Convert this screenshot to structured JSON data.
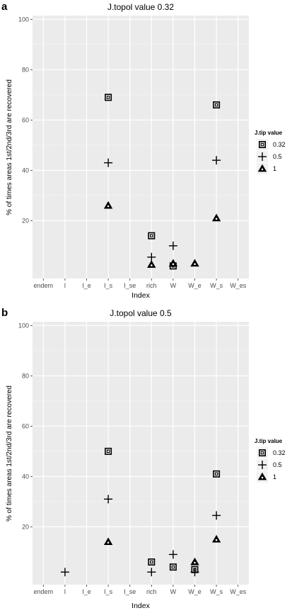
{
  "chart_data": [
    {
      "panel_label": "a",
      "type": "scatter",
      "title": "J.topol value  0.32",
      "xlabel": "Index",
      "ylabel": "% of times areas 1st/2nd/3rd are recovered",
      "categories": [
        "endem",
        "I",
        "I_e",
        "I_s",
        "I_se",
        "rich",
        "W",
        "W_e",
        "W_s",
        "W_es"
      ],
      "ylim": [
        0,
        100
      ],
      "yticks": [
        "20",
        "40",
        "60",
        "80",
        "100"
      ],
      "legend_title": "J.tip value",
      "legend_position": "right",
      "grid": true,
      "series": [
        {
          "name": "0.32",
          "shape": "square",
          "points": [
            {
              "x": "I_s",
              "y": 69
            },
            {
              "x": "rich",
              "y": 14
            },
            {
              "x": "W",
              "y": 2
            },
            {
              "x": "W_s",
              "y": 66
            }
          ]
        },
        {
          "name": "0.5",
          "shape": "plus",
          "points": [
            {
              "x": "I_s",
              "y": 43
            },
            {
              "x": "rich",
              "y": 5.5
            },
            {
              "x": "W",
              "y": 10
            },
            {
              "x": "W_s",
              "y": 44
            }
          ]
        },
        {
          "name": "1",
          "shape": "triangle",
          "points": [
            {
              "x": "I_s",
              "y": 26
            },
            {
              "x": "rich",
              "y": 2.5
            },
            {
              "x": "W",
              "y": 3
            },
            {
              "x": "W_e",
              "y": 3
            },
            {
              "x": "W_s",
              "y": 21
            }
          ]
        }
      ]
    },
    {
      "panel_label": "b",
      "type": "scatter",
      "title": "J.topol value  0.5",
      "xlabel": "Index",
      "ylabel": "% of times areas 1st/2nd/3rd are recovered",
      "categories": [
        "endem",
        "I",
        "I_e",
        "I_s",
        "I_se",
        "rich",
        "W",
        "W_e",
        "W_s",
        "W_es"
      ],
      "ylim": [
        0,
        100
      ],
      "yticks": [
        "20",
        "40",
        "60",
        "80",
        "100"
      ],
      "legend_title": "J.tip value",
      "legend_position": "right",
      "grid": true,
      "series": [
        {
          "name": "0.32",
          "shape": "square",
          "points": [
            {
              "x": "I_s",
              "y": 50
            },
            {
              "x": "rich",
              "y": 6
            },
            {
              "x": "W",
              "y": 4
            },
            {
              "x": "W_e",
              "y": 3
            },
            {
              "x": "W_s",
              "y": 41
            }
          ]
        },
        {
          "name": "0.5",
          "shape": "plus",
          "points": [
            {
              "x": "I",
              "y": 2
            },
            {
              "x": "I_s",
              "y": 31
            },
            {
              "x": "rich",
              "y": 2
            },
            {
              "x": "W",
              "y": 9
            },
            {
              "x": "W_e",
              "y": 2
            },
            {
              "x": "W_s",
              "y": 24.5
            }
          ]
        },
        {
          "name": "1",
          "shape": "triangle",
          "points": [
            {
              "x": "I_s",
              "y": 14
            },
            {
              "x": "W_e",
              "y": 6
            },
            {
              "x": "W_s",
              "y": 15
            }
          ]
        }
      ]
    }
  ]
}
